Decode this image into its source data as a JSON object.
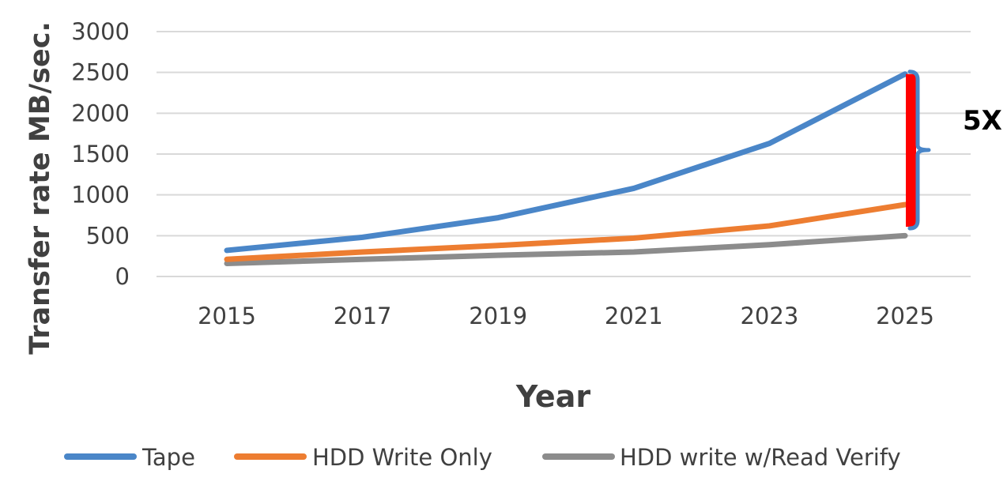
{
  "chart_data": {
    "type": "line",
    "title": "",
    "xlabel": "Year",
    "ylabel": "Transfer rate MB/sec.",
    "categories": [
      "2015",
      "2017",
      "2019",
      "2021",
      "2023",
      "2025"
    ],
    "ylim": [
      0,
      3000
    ],
    "yticks": [
      "0",
      "500",
      "1000",
      "1500",
      "2000",
      "2500",
      "3000"
    ],
    "grid": true,
    "legend_position": "bottom",
    "series": [
      {
        "name": "Tape",
        "values": [
          320,
          480,
          720,
          1080,
          1630,
          2480
        ],
        "color": "#4a86c8"
      },
      {
        "name": "HDD Write Only",
        "values": [
          210,
          300,
          380,
          470,
          620,
          880
        ],
        "color": "#ed7d31"
      },
      {
        "name": "HDD write w/Read Verify",
        "values": [
          160,
          210,
          260,
          300,
          390,
          500
        ],
        "color": "#8c8c8c"
      }
    ],
    "annotation": {
      "text": "5X",
      "bar_color": "#ff0000",
      "brace_color": "#4a86c8"
    }
  }
}
